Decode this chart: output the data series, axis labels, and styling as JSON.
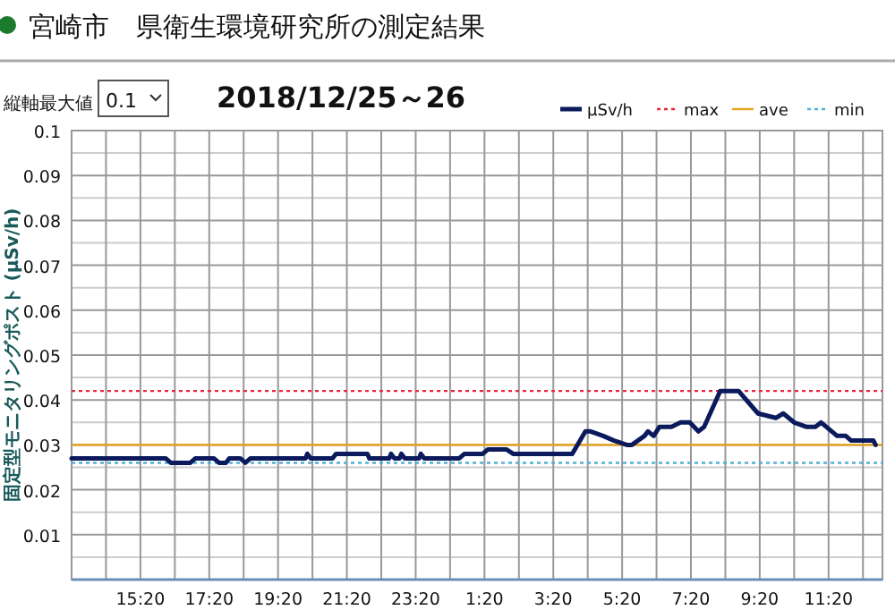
{
  "chart_data": {
    "type": "line",
    "title": "宮崎市　県衛生環境研究所の測定結果",
    "subtitle": "2018/12/25～26",
    "ylabel": "固定型モニタリングポスト (μSv/h)",
    "annotations": [
      "縦軸最大値",
      "0.1"
    ],
    "series": [
      {
        "name": "μSv/h",
        "color": "#0a1a5c",
        "x": [
          "2018-12-25T13:20",
          "2018-12-25T16:04",
          "2018-12-25T16:13",
          "2018-12-25T16:47",
          "2018-12-25T16:56",
          "2018-12-25T17:28",
          "2018-12-25T17:37",
          "2018-12-25T17:49",
          "2018-12-25T17:55",
          "2018-12-25T18:14",
          "2018-12-25T18:23",
          "2018-12-25T18:32",
          "2018-12-25T20:08",
          "2018-12-25T20:11",
          "2018-12-25T20:17",
          "2018-12-25T20:55",
          "2018-12-25T21:01",
          "2018-12-25T21:56",
          "2018-12-25T21:59",
          "2018-12-25T22:34",
          "2018-12-25T22:37",
          "2018-12-25T22:43",
          "2018-12-25T22:52",
          "2018-12-25T22:55",
          "2018-12-25T23:01",
          "2018-12-25T23:26",
          "2018-12-25T23:29",
          "2018-12-25T23:35",
          "2018-12-26T00:36",
          "2018-12-26T00:45",
          "2018-12-26T01:17",
          "2018-12-26T01:26",
          "2018-12-26T01:58",
          "2018-12-26T02:10",
          "2018-12-26T03:44",
          "2018-12-26T03:53",
          "2018-12-26T04:16",
          "2018-12-26T04:25",
          "2018-12-26T04:47",
          "2018-12-26T05:05",
          "2018-12-26T05:28",
          "2018-12-26T05:37",
          "2018-12-26T05:59",
          "2018-12-26T06:05",
          "2018-12-26T06:15",
          "2018-12-26T06:25",
          "2018-12-26T06:46",
          "2018-12-26T07:02",
          "2018-12-26T07:18",
          "2018-12-26T07:33",
          "2018-12-26T07:43",
          "2018-12-26T08:11",
          "2018-12-26T08:43",
          "2018-12-26T09:17",
          "2018-12-26T09:48",
          "2018-12-26T10:01",
          "2018-12-26T10:20",
          "2018-12-26T10:42",
          "2018-12-26T10:57",
          "2018-12-26T11:07",
          "2018-12-26T11:35",
          "2018-12-26T11:50",
          "2018-12-26T11:59",
          "2018-12-26T12:38",
          "2018-12-26T12:42"
        ],
        "values": [
          0.027,
          0.027,
          0.026,
          0.026,
          0.027,
          0.027,
          0.026,
          0.026,
          0.027,
          0.027,
          0.026,
          0.027,
          0.027,
          0.028,
          0.027,
          0.027,
          0.028,
          0.028,
          0.027,
          0.027,
          0.028,
          0.027,
          0.027,
          0.028,
          0.027,
          0.027,
          0.028,
          0.027,
          0.027,
          0.028,
          0.028,
          0.029,
          0.029,
          0.028,
          0.028,
          0.028,
          0.033,
          0.033,
          0.032,
          0.031,
          0.03,
          0.03,
          0.032,
          0.033,
          0.032,
          0.034,
          0.034,
          0.035,
          0.035,
          0.033,
          0.034,
          0.042,
          0.042,
          0.037,
          0.036,
          0.037,
          0.035,
          0.034,
          0.034,
          0.035,
          0.032,
          0.032,
          0.031,
          0.031,
          0.03
        ]
      }
    ],
    "ref_lines": [
      {
        "axis": "y",
        "value": 0.042,
        "label": "max",
        "color": "#e8283c",
        "line_style": "dotted"
      },
      {
        "axis": "y",
        "value": 0.03,
        "label": "ave",
        "color": "#e8a317",
        "line_style": "solid"
      },
      {
        "axis": "y",
        "value": 0.026,
        "label": "min",
        "color": "#4fb0d8",
        "line_style": "dotted"
      }
    ],
    "xlim": [
      "2018-12-25T13:20",
      "2018-12-26T12:54"
    ],
    "xticks": [
      {
        "value": "2018-12-25T14:20",
        "label": null
      },
      {
        "value": "2018-12-25T15:20",
        "label": "15:20"
      },
      {
        "value": "2018-12-25T16:20",
        "label": null
      },
      {
        "value": "2018-12-25T17:20",
        "label": "17:20"
      },
      {
        "value": "2018-12-25T18:20",
        "label": null
      },
      {
        "value": "2018-12-25T19:20",
        "label": "19:20"
      },
      {
        "value": "2018-12-25T20:20",
        "label": null
      },
      {
        "value": "2018-12-25T21:20",
        "label": "21:20"
      },
      {
        "value": "2018-12-25T22:20",
        "label": null
      },
      {
        "value": "2018-12-25T23:20",
        "label": "23:20"
      },
      {
        "value": "2018-12-26T00:20",
        "label": null
      },
      {
        "value": "2018-12-26T01:20",
        "label": "1:20"
      },
      {
        "value": "2018-12-26T02:20",
        "label": null
      },
      {
        "value": "2018-12-26T03:20",
        "label": "3:20"
      },
      {
        "value": "2018-12-26T04:20",
        "label": null
      },
      {
        "value": "2018-12-26T05:20",
        "label": "5:20"
      },
      {
        "value": "2018-12-26T06:20",
        "label": null
      },
      {
        "value": "2018-12-26T07:20",
        "label": "7:20"
      },
      {
        "value": "2018-12-26T08:20",
        "label": null
      },
      {
        "value": "2018-12-26T09:20",
        "label": "9:20"
      },
      {
        "value": "2018-12-26T10:20",
        "label": null
      },
      {
        "value": "2018-12-26T11:20",
        "label": "11:20"
      },
      {
        "value": "2018-12-26T12:20",
        "label": null
      }
    ],
    "ylim": [
      0,
      0.1
    ],
    "yticks": [
      {
        "value": 0.005,
        "label": null
      },
      0.01,
      {
        "value": 0.015,
        "label": null
      },
      0.02,
      {
        "value": 0.025,
        "label": null
      },
      0.03,
      {
        "value": 0.035,
        "label": null
      },
      0.04,
      {
        "value": 0.045,
        "label": null
      },
      0.05,
      {
        "value": 0.055,
        "label": null
      },
      0.06,
      {
        "value": 0.065,
        "label": null
      },
      0.07,
      {
        "value": 0.075,
        "label": null
      },
      0.08,
      {
        "value": 0.085,
        "label": null
      },
      0.09,
      {
        "value": 0.095,
        "label": null
      },
      0.1
    ],
    "grid": true,
    "legend": "top right",
    "marker": "none",
    "line_style": "solid"
  }
}
